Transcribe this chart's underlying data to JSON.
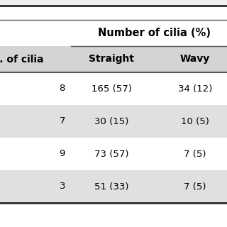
{
  "title": "Number of cilia (%)",
  "col1_header": "No. of cilia",
  "col2_header": "Straight",
  "col3_header": "Wavy",
  "col1_values": [
    "8",
    "7",
    "9",
    "3"
  ],
  "col2_values": [
    "165 (57)",
    "30 (15)",
    "73 (57)",
    "51 (33)"
  ],
  "col3_values": [
    "34 (12)",
    "10 (5)",
    "7 (5)",
    "7 (5)"
  ],
  "row_bg_colors": [
    "#ffffff",
    "#e0e0e0",
    "#ffffff",
    "#e0e0e0"
  ],
  "subheader_bg": "#d4d4d4",
  "top_header_bg": "#ffffff",
  "bg_color": "#f0f0f0",
  "text_color": "#000000",
  "top_border_color": "#2a2a2a",
  "bottom_border_color": "#2a2a2a",
  "inner_line_color": "#555555",
  "font_size": 9.5,
  "header_font_size": 10.0,
  "title_font_size": 10.5
}
